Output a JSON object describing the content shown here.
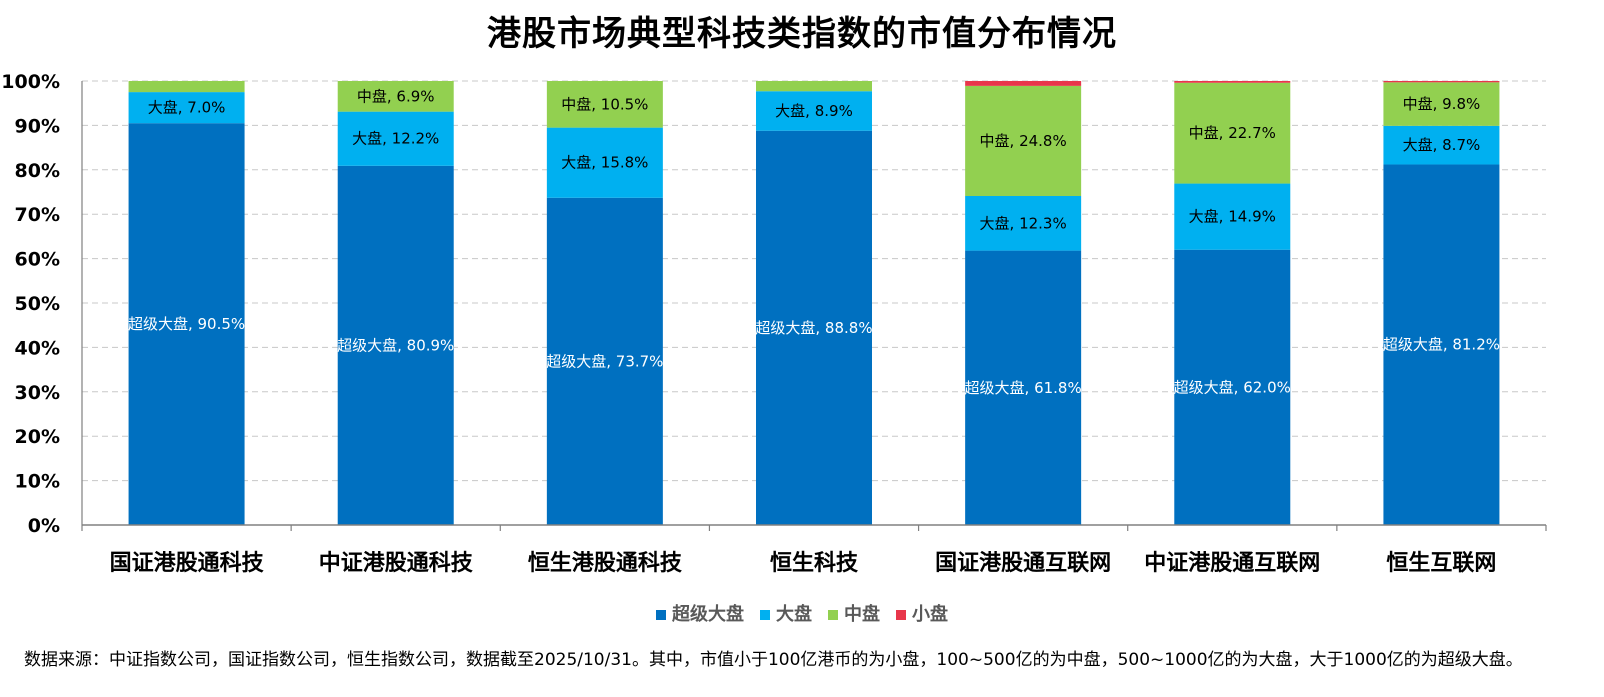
{
  "chart_data": {
    "type": "bar",
    "stacked": true,
    "title": "港股市场典型科技类指数的市值分布情况",
    "categories": [
      "国证港股通科技",
      "中证港股通科技",
      "恒生港股通科技",
      "恒生科技",
      "国证港股通互联网",
      "中证港股通互联网",
      "恒生互联网"
    ],
    "series": [
      {
        "name": "超级大盘",
        "color": "#0070C0",
        "label_color": "#ffffff",
        "values": [
          90.5,
          80.9,
          73.7,
          88.8,
          61.8,
          62.0,
          81.2
        ]
      },
      {
        "name": "大盘",
        "color": "#00B0F0",
        "label_color": "#000000",
        "values": [
          7.0,
          12.2,
          15.8,
          8.9,
          12.3,
          14.9,
          8.7
        ]
      },
      {
        "name": "中盘",
        "color": "#92D050",
        "label_color": "#000000",
        "values": [
          2.5,
          6.9,
          10.5,
          2.3,
          24.8,
          22.7,
          9.8
        ]
      },
      {
        "name": "小盘",
        "color": "#E8364B",
        "label_color": "#000000",
        "values": [
          0.0,
          0.0,
          0.0,
          0.0,
          1.1,
          0.4,
          0.3
        ]
      }
    ],
    "data_labels": [
      [
        "超级大盘, 90.5%",
        "超级大盘, 80.9%",
        "超级大盘, 73.7%",
        "超级大盘, 88.8%",
        "超级大盘, 61.8%",
        "超级大盘, 62.0%",
        "超级大盘, 81.2%"
      ],
      [
        "大盘, 7.0%",
        "大盘, 12.2%",
        "大盘, 15.8%",
        "大盘, 8.9%",
        "大盘, 12.3%",
        "大盘, 14.9%",
        "大盘, 8.7%"
      ],
      [
        "",
        "中盘, 6.9%",
        "中盘, 10.5%",
        "",
        "中盘, 24.8%",
        "中盘, 22.7%",
        "中盘, 9.8%"
      ],
      [
        "",
        "",
        "",
        "",
        "",
        "",
        ""
      ]
    ],
    "yticks": [
      "0%",
      "10%",
      "20%",
      "30%",
      "40%",
      "50%",
      "60%",
      "70%",
      "80%",
      "90%",
      "100%"
    ],
    "ylim": [
      0,
      100
    ],
    "grid": true,
    "legend_position": "bottom",
    "xlabel": "",
    "ylabel": ""
  },
  "footnote": "数据来源：中证指数公司，国证指数公司，恒生指数公司，数据截至2025/10/31。其中，市值小于100亿港币的为小盘，100~500亿的为中盘，500~1000亿的为大盘，大于1000亿的为超级大盘。"
}
